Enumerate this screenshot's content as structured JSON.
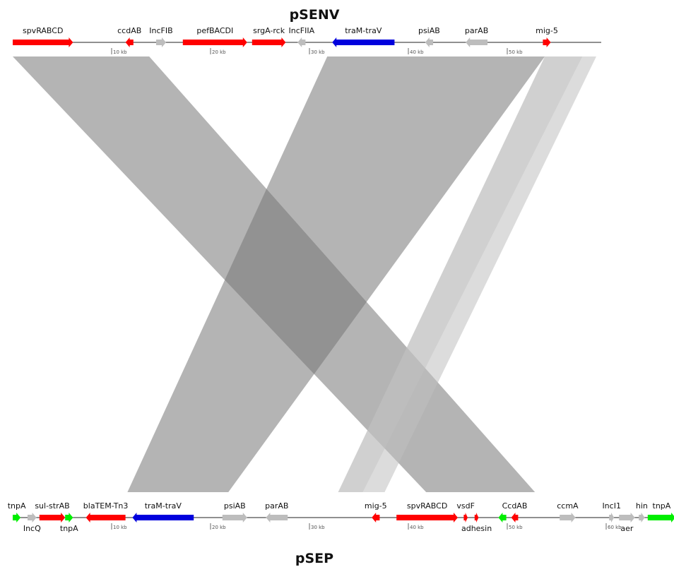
{
  "colors": {
    "red": "#ff0000",
    "blue": "#0000dd",
    "green": "#00ee00",
    "gray": "#bdbdbd",
    "backbone": "#222222",
    "link_dark": "#777777",
    "link_light": "#c0c0c0"
  },
  "top": {
    "title": "pSENV",
    "length_kb": 59,
    "ticks": [
      "10 kb",
      "20 kb",
      "30 kb",
      "40 kb",
      "50 kb"
    ],
    "genes": [
      {
        "label": "spvRABCD",
        "start_kb": 0.0,
        "end_kb": 6.1,
        "strand": 1,
        "color": "red"
      },
      {
        "label": "ccdAB",
        "start_kb": 11.4,
        "end_kb": 12.2,
        "strand": -1,
        "color": "red"
      },
      {
        "label": "IncFIB",
        "start_kb": 14.5,
        "end_kb": 15.5,
        "strand": 1,
        "color": "gray"
      },
      {
        "label": "pefBACDI",
        "start_kb": 17.2,
        "end_kb": 23.7,
        "strand": 1,
        "color": "red"
      },
      {
        "label": "srgA-rck",
        "start_kb": 24.2,
        "end_kb": 27.6,
        "strand": 1,
        "color": "red"
      },
      {
        "label": "IncFIIA",
        "start_kb": 28.8,
        "end_kb": 29.6,
        "strand": -1,
        "color": "gray"
      },
      {
        "label": "traM-traV",
        "start_kb": 32.3,
        "end_kb": 38.6,
        "strand": -1,
        "color": "blue"
      },
      {
        "label": "psiAB",
        "start_kb": 41.7,
        "end_kb": 42.5,
        "strand": -1,
        "color": "gray"
      },
      {
        "label": "parAB",
        "start_kb": 45.8,
        "end_kb": 48.0,
        "strand": -1,
        "color": "gray"
      },
      {
        "label": "mig-5",
        "start_kb": 53.6,
        "end_kb": 54.4,
        "strand": 1,
        "color": "red"
      }
    ]
  },
  "bottom": {
    "title": "pSEP",
    "length_kb": 67,
    "ticks": [
      "10 kb",
      "20 kb",
      "30 kb",
      "40 kb",
      "50 kb",
      "60 kb"
    ],
    "genes": [
      {
        "label": "tnpA",
        "start_kb": 0.0,
        "end_kb": 0.8,
        "strand": 1,
        "color": "green",
        "label_pos": "above"
      },
      {
        "label": "IncQ",
        "start_kb": 1.5,
        "end_kb": 2.4,
        "strand": 1,
        "color": "gray",
        "label_pos": "below"
      },
      {
        "label": "sul-strAB",
        "start_kb": 2.7,
        "end_kb": 5.3,
        "strand": 1,
        "color": "red",
        "label_pos": "above"
      },
      {
        "label": "tnpA",
        "start_kb": 5.3,
        "end_kb": 6.1,
        "strand": 1,
        "color": "green",
        "label_pos": "below"
      },
      {
        "label": "blaTEM-Tn3",
        "start_kb": 7.4,
        "end_kb": 11.4,
        "strand": -1,
        "color": "red",
        "label_pos": "above"
      },
      {
        "label": "traM-traV",
        "start_kb": 12.1,
        "end_kb": 18.3,
        "strand": -1,
        "color": "blue",
        "label_pos": "above"
      },
      {
        "label": "psiAB",
        "start_kb": 21.2,
        "end_kb": 23.7,
        "strand": 1,
        "color": "gray",
        "label_pos": "above"
      },
      {
        "label": "parAB",
        "start_kb": 25.6,
        "end_kb": 27.8,
        "strand": -1,
        "color": "gray",
        "label_pos": "above"
      },
      {
        "label": "mig-5",
        "start_kb": 36.3,
        "end_kb": 37.1,
        "strand": -1,
        "color": "red",
        "label_pos": "above"
      },
      {
        "label": "spvRABCD",
        "start_kb": 38.8,
        "end_kb": 45.0,
        "strand": 1,
        "color": "red",
        "label_pos": "above"
      },
      {
        "label": "vsdF",
        "start_kb": 45.6,
        "end_kb": 46.0,
        "strand": 1,
        "color": "red",
        "label_pos": "above"
      },
      {
        "label": "adhesin",
        "start_kb": 46.7,
        "end_kb": 47.1,
        "strand": 1,
        "color": "red",
        "label_pos": "below"
      },
      {
        "label": "",
        "start_kb": 49.1,
        "end_kb": 49.9,
        "strand": -1,
        "color": "green",
        "label_pos": "none"
      },
      {
        "label": "CcdAB",
        "start_kb": 50.4,
        "end_kb": 51.1,
        "strand": -1,
        "color": "red",
        "label_pos": "above"
      },
      {
        "label": "ccmA",
        "start_kb": 55.3,
        "end_kb": 56.9,
        "strand": 1,
        "color": "gray",
        "label_pos": "above"
      },
      {
        "label": "IncI1",
        "start_kb": 60.3,
        "end_kb": 60.8,
        "strand": 1,
        "color": "gray",
        "label_pos": "above"
      },
      {
        "label": "aer",
        "start_kb": 61.3,
        "end_kb": 62.9,
        "strand": 1,
        "color": "gray",
        "label_pos": "below"
      },
      {
        "label": "hin",
        "start_kb": 63.3,
        "end_kb": 63.9,
        "strand": 1,
        "color": "gray",
        "label_pos": "above"
      },
      {
        "label": "tnpA",
        "start_kb": 64.2,
        "end_kb": 67.0,
        "strand": 1,
        "color": "green",
        "label_pos": "above"
      }
    ]
  },
  "links": [
    {
      "top_kb": [
        0.0,
        13.8
      ],
      "bottom_kb": [
        41.8,
        52.8
      ],
      "shade": "dark",
      "opacity": 0.55
    },
    {
      "top_kb": [
        31.8,
        53.8
      ],
      "bottom_kb": [
        11.6,
        21.8
      ],
      "shade": "dark",
      "opacity": 0.55
    },
    {
      "top_kb": [
        53.8,
        57.6
      ],
      "bottom_kb": [
        32.9,
        35.4
      ],
      "shade": "light",
      "opacity": 0.75
    },
    {
      "top_kb": [
        57.6,
        59.0
      ],
      "bottom_kb": [
        35.4,
        37.6
      ],
      "shade": "light",
      "opacity": 0.55
    }
  ]
}
